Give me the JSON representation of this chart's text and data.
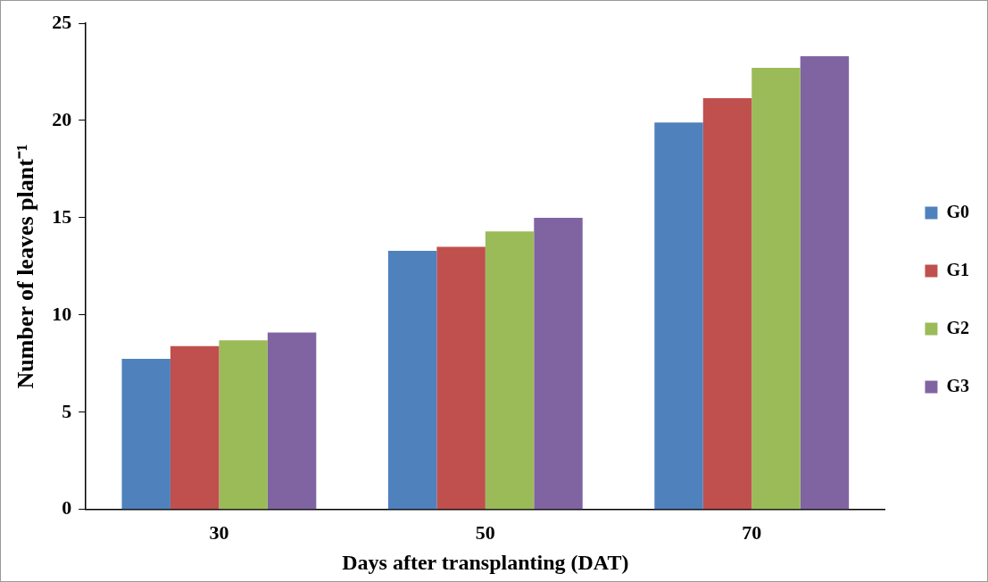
{
  "chart_data": {
    "type": "bar",
    "xlabel": "Days after transplanting (DAT)",
    "ylabel": "Number of leaves plant⁻¹",
    "categories": [
      "30",
      "50",
      "70"
    ],
    "series": [
      {
        "name": "G0",
        "color": "#4f81bd",
        "values": [
          7.75,
          13.3,
          19.9
        ]
      },
      {
        "name": "G1",
        "color": "#c0504d",
        "values": [
          8.4,
          13.5,
          21.15
        ]
      },
      {
        "name": "G2",
        "color": "#9bbb59",
        "values": [
          8.7,
          14.3,
          22.7
        ]
      },
      {
        "name": "G3",
        "color": "#8064a2",
        "values": [
          9.1,
          15.0,
          23.3
        ]
      }
    ],
    "ylim": [
      0,
      25
    ],
    "yticks": [
      0,
      5,
      10,
      15,
      20,
      25
    ],
    "grid": false,
    "legend": "right"
  }
}
